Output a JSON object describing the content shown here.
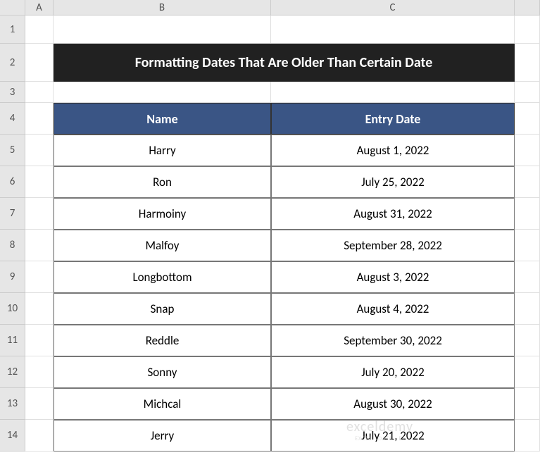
{
  "columns": [
    "",
    "A",
    "B",
    "C",
    ""
  ],
  "rows": [
    "1",
    "2",
    "3",
    "4",
    "5",
    "6",
    "7",
    "8",
    "9",
    "10",
    "11",
    "12",
    "13",
    "14"
  ],
  "title": "Formatting Dates That Are Older Than Certain Date",
  "headers": {
    "name": "Name",
    "date": "Entry Date"
  },
  "data": [
    {
      "name": "Harry",
      "date": "August 1, 2022"
    },
    {
      "name": "Ron",
      "date": "July 25, 2022"
    },
    {
      "name": "Harmoiny",
      "date": "August 31, 2022"
    },
    {
      "name": "Malfoy",
      "date": "September 28, 2022"
    },
    {
      "name": "Longbottom",
      "date": "August 3, 2022"
    },
    {
      "name": "Snap",
      "date": "August 4, 2022"
    },
    {
      "name": "Reddle",
      "date": "September 30, 2022"
    },
    {
      "name": "Sonny",
      "date": "July 20, 2022"
    },
    {
      "name": "Michcal",
      "date": "August 30, 2022"
    },
    {
      "name": "Jerry",
      "date": "July 21, 2022"
    }
  ],
  "watermark": {
    "brand": "exceldemy",
    "tagline": "EXCEL · DATA · BI"
  },
  "styles": {
    "title_bg": "#212121",
    "title_fg": "#ffffff",
    "header_bg": "#3a5585",
    "header_fg": "#ffffff",
    "cell_bg": "#ffffff",
    "border": "#777777",
    "grid_header_bg": "#e6e6e6",
    "font": "Calibri"
  }
}
